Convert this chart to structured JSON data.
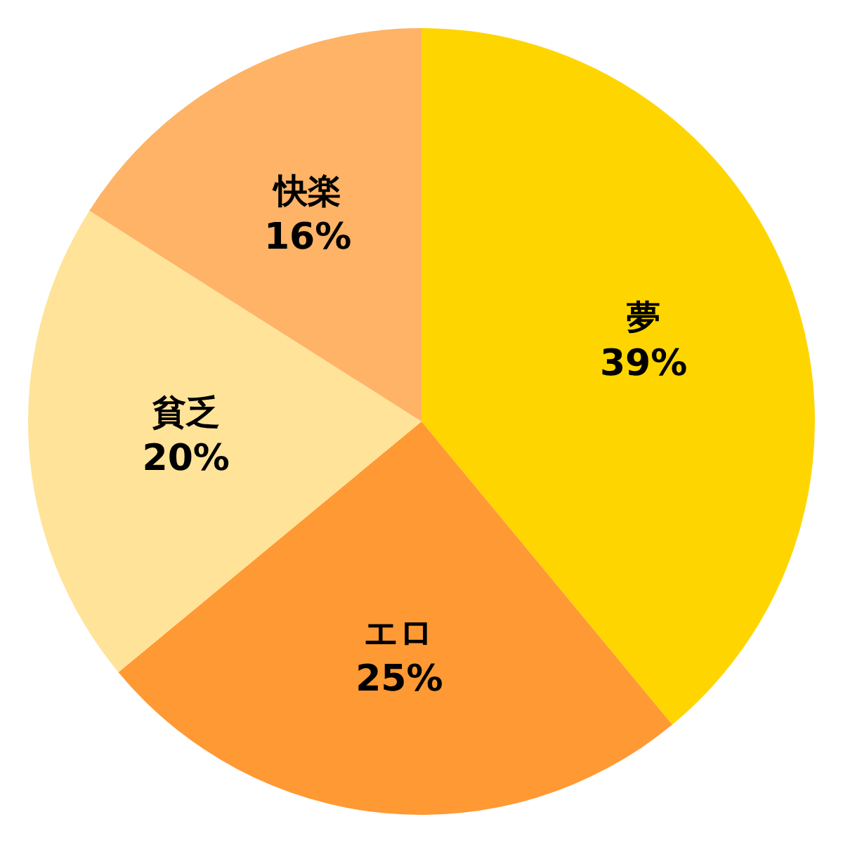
{
  "chart_data": {
    "type": "pie",
    "categories": [
      "夢",
      "エロ",
      "貧乏",
      "快楽"
    ],
    "values": [
      39,
      25,
      20,
      16
    ],
    "value_labels": [
      "39%",
      "25%",
      "20%",
      "16%"
    ],
    "colors": [
      "#ffd500",
      "#ff9933",
      "#ffe399",
      "#ffb366"
    ],
    "legend": false
  }
}
